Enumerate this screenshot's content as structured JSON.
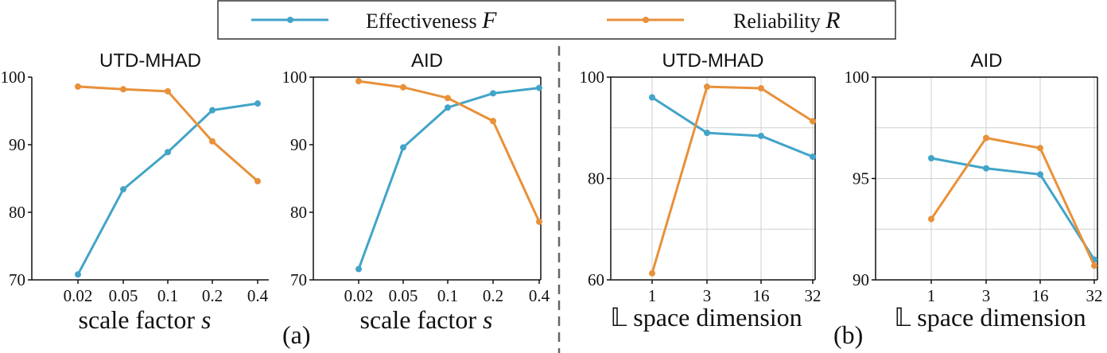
{
  "legend": {
    "items": [
      {
        "label": "Effectiveness",
        "symbol": "F",
        "color": "#42a4c8"
      },
      {
        "label": "Reliability",
        "symbol": "R",
        "color": "#e8913a"
      }
    ]
  },
  "subfigure_labels": [
    "(a)",
    "(b)"
  ],
  "chart_data": [
    {
      "type": "line",
      "title": "UTD-MHAD",
      "xlabel": "scale factor",
      "xlabel_symbol": "s",
      "categories": [
        "0.02",
        "0.05",
        "0.1",
        "0.2",
        "0.4"
      ],
      "ylim": [
        70,
        100
      ],
      "yticks": [
        70,
        80,
        90,
        100
      ],
      "grid": false,
      "series": [
        {
          "name": "Effectiveness F",
          "color": "#42a4c8",
          "values": [
            70.8,
            83.4,
            88.9,
            95.1,
            96.1
          ]
        },
        {
          "name": "Reliability R",
          "color": "#e8913a",
          "values": [
            98.6,
            98.2,
            97.9,
            90.5,
            84.6
          ]
        }
      ]
    },
    {
      "type": "line",
      "title": "AID",
      "xlabel": "scale factor",
      "xlabel_symbol": "s",
      "categories": [
        "0.02",
        "0.05",
        "0.1",
        "0.2",
        "0.4"
      ],
      "ylim": [
        70,
        100
      ],
      "yticks": [
        70,
        80,
        90,
        100
      ],
      "grid": false,
      "series": [
        {
          "name": "Effectiveness F",
          "color": "#42a4c8",
          "values": [
            71.6,
            89.6,
            95.5,
            97.6,
            98.4
          ]
        },
        {
          "name": "Reliability R",
          "color": "#e8913a",
          "values": [
            99.4,
            98.5,
            96.9,
            93.5,
            78.6
          ]
        }
      ]
    },
    {
      "type": "line",
      "title": "UTD-MHAD",
      "xlabel": "𝕃 space dimension",
      "categories": [
        "1",
        "3",
        "16",
        "32"
      ],
      "ylim": [
        60,
        100
      ],
      "yticks": [
        60,
        80,
        100
      ],
      "gridlines": [
        60,
        70,
        80,
        90,
        100
      ],
      "grid": true,
      "series": [
        {
          "name": "Effectiveness F",
          "color": "#42a4c8",
          "values": [
            96.0,
            89.0,
            88.4,
            84.3
          ]
        },
        {
          "name": "Reliability R",
          "color": "#e8913a",
          "values": [
            61.3,
            98.1,
            97.8,
            91.3
          ]
        }
      ]
    },
    {
      "type": "line",
      "title": "AID",
      "xlabel": "𝕃 space dimension",
      "categories": [
        "1",
        "3",
        "16",
        "32"
      ],
      "ylim": [
        90,
        100
      ],
      "yticks": [
        90,
        95,
        100
      ],
      "gridlines": [
        90,
        92.5,
        95,
        97.5,
        100
      ],
      "grid": true,
      "series": [
        {
          "name": "Effectiveness F",
          "color": "#42a4c8",
          "values": [
            96.0,
            95.5,
            95.2,
            91.0
          ]
        },
        {
          "name": "Reliability R",
          "color": "#e8913a",
          "values": [
            93.0,
            97.0,
            96.5,
            90.7
          ]
        }
      ]
    }
  ]
}
